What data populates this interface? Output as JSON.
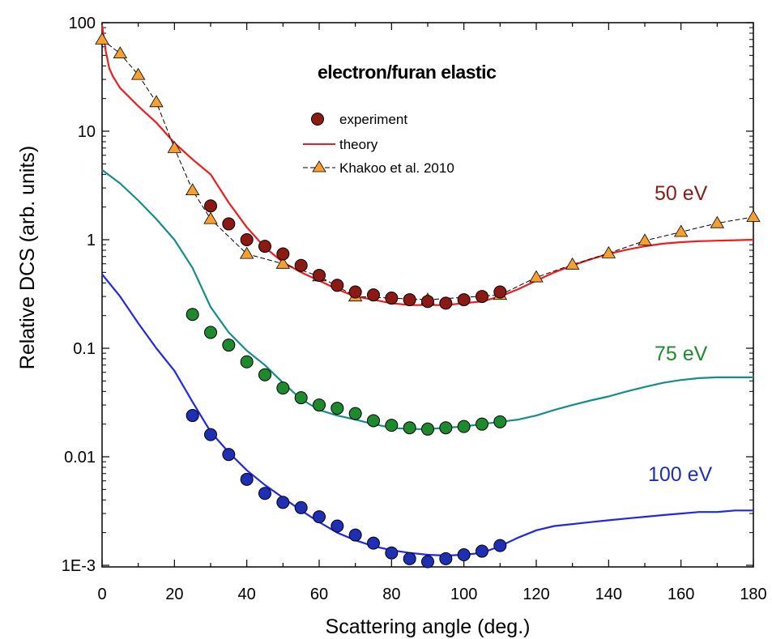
{
  "chart_data": {
    "type": "scatter",
    "title": "electron/furan elastic",
    "xlabel": "Scattering angle (deg.)",
    "ylabel": "Relative DCS (arb. units)",
    "xlim": [
      0,
      180
    ],
    "ylim": [
      0.0008,
      100
    ],
    "yscale": "log",
    "x_ticks": [
      "0",
      "20",
      "40",
      "60",
      "80",
      "100",
      "120",
      "140",
      "160",
      "180"
    ],
    "y_ticks": [
      "100",
      "10",
      "1",
      "0.1",
      "0.01",
      "1E-3"
    ],
    "legend": {
      "position": "top-center",
      "entries": [
        "experiment",
        "theory",
        "Khakoo et al. 2010"
      ]
    },
    "colors": {
      "exp_50": "#8b1a14",
      "exp_75": "#1e8a2e",
      "exp_100": "#1f2fb4",
      "theory_50": "#ee1c1c",
      "theory_75": "#158c8c",
      "theory_100": "#1e28e6",
      "khakoo": "#f5a030",
      "label_50": "#8b1a14",
      "label_75": "#1e8a2e",
      "label_100": "#1f2fb4"
    },
    "energy_labels": [
      "50 eV",
      "75 eV",
      "100 eV"
    ],
    "series": [
      {
        "group": "50 eV",
        "kind": "experiment",
        "x": [
          30,
          35,
          40,
          45,
          50,
          55,
          60,
          65,
          70,
          75,
          80,
          85,
          90,
          95,
          100,
          105,
          110
        ],
        "y": [
          2.05,
          1.4,
          1.0,
          0.87,
          0.74,
          0.58,
          0.47,
          0.38,
          0.33,
          0.31,
          0.29,
          0.28,
          0.27,
          0.26,
          0.28,
          0.3,
          0.33
        ]
      },
      {
        "group": "50 eV",
        "kind": "theory",
        "x": [
          0,
          1,
          2,
          3,
          5,
          10,
          15,
          20,
          25,
          30,
          35,
          40,
          45,
          50,
          55,
          60,
          65,
          70,
          75,
          80,
          85,
          90,
          95,
          100,
          105,
          110,
          115,
          120,
          125,
          130,
          135,
          140,
          145,
          150,
          155,
          160,
          165,
          170,
          175,
          180
        ],
        "y": [
          95,
          55,
          38,
          32,
          25,
          17,
          12,
          7.8,
          5.5,
          4.0,
          2.2,
          1.3,
          0.85,
          0.62,
          0.5,
          0.42,
          0.35,
          0.3,
          0.28,
          0.26,
          0.25,
          0.25,
          0.25,
          0.26,
          0.27,
          0.3,
          0.35,
          0.42,
          0.5,
          0.58,
          0.66,
          0.74,
          0.81,
          0.87,
          0.92,
          0.95,
          0.97,
          0.98,
          0.99,
          1.0
        ]
      },
      {
        "group": "50 eV",
        "kind": "khakoo",
        "x": [
          0,
          5,
          10,
          15,
          20,
          25,
          30,
          40,
          50,
          60,
          70,
          90,
          110,
          120,
          130,
          140,
          150,
          160,
          170,
          180
        ],
        "y": [
          70,
          52,
          33,
          18.5,
          7.0,
          2.85,
          1.55,
          0.74,
          0.6,
          0.46,
          0.3,
          0.28,
          0.31,
          0.45,
          0.59,
          0.75,
          0.98,
          1.18,
          1.42,
          1.62
        ]
      },
      {
        "group": "75 eV",
        "kind": "experiment",
        "x": [
          25,
          30,
          35,
          40,
          45,
          50,
          55,
          60,
          65,
          70,
          75,
          80,
          85,
          90,
          95,
          100,
          105,
          110
        ],
        "y": [
          0.205,
          0.14,
          0.107,
          0.075,
          0.057,
          0.043,
          0.035,
          0.03,
          0.028,
          0.025,
          0.0215,
          0.0195,
          0.0185,
          0.018,
          0.0185,
          0.019,
          0.02,
          0.021
        ]
      },
      {
        "group": "75 eV",
        "kind": "theory",
        "x": [
          0,
          5,
          10,
          15,
          20,
          25,
          30,
          35,
          40,
          45,
          50,
          55,
          60,
          65,
          70,
          75,
          80,
          85,
          90,
          95,
          100,
          105,
          110,
          115,
          120,
          125,
          130,
          135,
          140,
          145,
          150,
          155,
          160,
          165,
          170,
          175,
          180
        ],
        "y": [
          4.4,
          3.3,
          2.3,
          1.55,
          1.0,
          0.55,
          0.24,
          0.14,
          0.095,
          0.07,
          0.048,
          0.034,
          0.027,
          0.024,
          0.022,
          0.02,
          0.0185,
          0.018,
          0.018,
          0.0185,
          0.019,
          0.02,
          0.021,
          0.022,
          0.024,
          0.027,
          0.03,
          0.033,
          0.036,
          0.04,
          0.044,
          0.048,
          0.051,
          0.053,
          0.054,
          0.054,
          0.054
        ]
      },
      {
        "group": "100 eV",
        "kind": "experiment",
        "x": [
          25,
          30,
          35,
          40,
          45,
          50,
          55,
          60,
          65,
          70,
          75,
          80,
          85,
          90,
          95,
          100,
          105,
          110
        ],
        "y": [
          0.024,
          0.016,
          0.0105,
          0.0062,
          0.0046,
          0.0038,
          0.0034,
          0.0028,
          0.0023,
          0.0019,
          0.0016,
          0.0013,
          0.00115,
          0.00108,
          0.00115,
          0.00125,
          0.00135,
          0.00152
        ]
      },
      {
        "group": "100 eV",
        "kind": "theory",
        "x": [
          0,
          5,
          10,
          15,
          20,
          25,
          30,
          35,
          40,
          45,
          50,
          55,
          60,
          65,
          70,
          75,
          80,
          85,
          90,
          95,
          100,
          105,
          110,
          115,
          120,
          125,
          130,
          135,
          140,
          145,
          150,
          155,
          160,
          165,
          170,
          175,
          180
        ],
        "y": [
          0.48,
          0.3,
          0.17,
          0.1,
          0.062,
          0.032,
          0.017,
          0.011,
          0.0075,
          0.0055,
          0.0042,
          0.0032,
          0.0025,
          0.002,
          0.0017,
          0.0015,
          0.00138,
          0.0013,
          0.00125,
          0.00123,
          0.00125,
          0.0013,
          0.0015,
          0.0018,
          0.0021,
          0.0023,
          0.0024,
          0.0025,
          0.0026,
          0.0027,
          0.0028,
          0.0029,
          0.003,
          0.0031,
          0.0031,
          0.0032,
          0.0032
        ]
      }
    ]
  }
}
